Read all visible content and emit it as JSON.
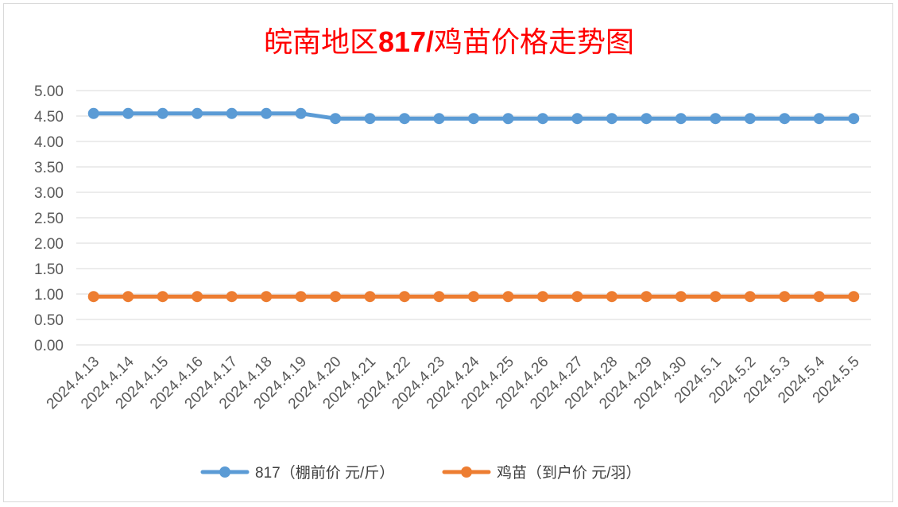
{
  "chart_data": {
    "type": "line",
    "title": "皖南地区817/鸡苗价格走势图",
    "x": [
      "2024.4.13",
      "2024.4.14",
      "2024.4.15",
      "2024.4.16",
      "2024.4.17",
      "2024.4.18",
      "2024.4.19",
      "2024.4.20",
      "2024.4.21",
      "2024.4.22",
      "2024.4.23",
      "2024.4.24",
      "2024.4.25",
      "2024.4.26",
      "2024.4.27",
      "2024.4.28",
      "2024.4.29",
      "2024.4.30",
      "2024.5.1",
      "2024.5.2",
      "2024.5.3",
      "2024.5.4",
      "2024.5.5"
    ],
    "yticks": [
      "0.00",
      "0.50",
      "1.00",
      "1.50",
      "2.00",
      "2.50",
      "3.00",
      "3.50",
      "4.00",
      "4.50",
      "5.00"
    ],
    "ylim": [
      0,
      5
    ],
    "grid": true,
    "legend_position": "bottom",
    "series": [
      {
        "name": "817（棚前价 元/斤）",
        "color": "#5b9bd5",
        "values": [
          4.55,
          4.55,
          4.55,
          4.55,
          4.55,
          4.55,
          4.55,
          4.45,
          4.45,
          4.45,
          4.45,
          4.45,
          4.45,
          4.45,
          4.45,
          4.45,
          4.45,
          4.45,
          4.45,
          4.45,
          4.45,
          4.45,
          4.45
        ]
      },
      {
        "name": "鸡苗（到户价 元/羽）",
        "color": "#ed7d31",
        "values": [
          0.95,
          0.95,
          0.95,
          0.95,
          0.95,
          0.95,
          0.95,
          0.95,
          0.95,
          0.95,
          0.95,
          0.95,
          0.95,
          0.95,
          0.95,
          0.95,
          0.95,
          0.95,
          0.95,
          0.95,
          0.95,
          0.95,
          0.95
        ]
      }
    ]
  }
}
